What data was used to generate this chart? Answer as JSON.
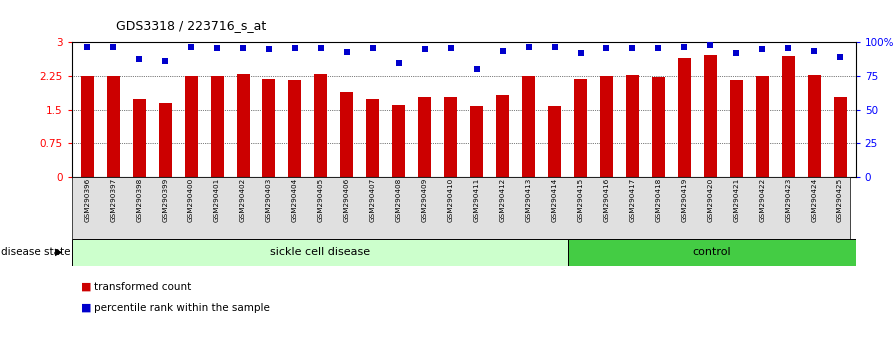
{
  "title": "GDS3318 / 223716_s_at",
  "samples": [
    "GSM290396",
    "GSM290397",
    "GSM290398",
    "GSM290399",
    "GSM290400",
    "GSM290401",
    "GSM290402",
    "GSM290403",
    "GSM290404",
    "GSM290405",
    "GSM290406",
    "GSM290407",
    "GSM290408",
    "GSM290409",
    "GSM290410",
    "GSM290411",
    "GSM290412",
    "GSM290413",
    "GSM290414",
    "GSM290415",
    "GSM290416",
    "GSM290417",
    "GSM290418",
    "GSM290419",
    "GSM290420",
    "GSM290421",
    "GSM290422",
    "GSM290423",
    "GSM290424",
    "GSM290425"
  ],
  "bar_values": [
    2.25,
    2.25,
    1.73,
    1.65,
    2.25,
    2.25,
    2.3,
    2.18,
    2.17,
    2.3,
    1.9,
    1.73,
    1.6,
    1.78,
    1.78,
    1.58,
    1.82,
    2.25,
    1.58,
    2.18,
    2.25,
    2.27,
    2.22,
    2.65,
    2.72,
    2.17,
    2.25,
    2.7,
    2.27,
    1.78
  ],
  "percentile_pct": [
    97,
    97,
    88,
    86,
    97,
    96,
    96,
    95,
    96,
    96,
    93,
    96,
    85,
    95,
    96,
    80,
    94,
    97,
    97,
    92,
    96,
    96,
    96,
    97,
    98,
    92,
    95,
    96,
    94,
    89
  ],
  "sickle_count": 19,
  "bar_color": "#cc0000",
  "dot_color": "#0000cc",
  "sickle_bg": "#ccffcc",
  "control_bg": "#44cc44",
  "yticks_left": [
    0,
    0.75,
    1.5,
    2.25,
    3.0
  ],
  "ytick_labels_left": [
    "0",
    "0.75",
    "1.5",
    "2.25",
    "3"
  ],
  "yticks_right": [
    0,
    25,
    50,
    75,
    100
  ],
  "ytick_labels_right": [
    "0",
    "25",
    "50",
    "75",
    "100%"
  ],
  "title_fontsize": 9,
  "bar_width": 0.5,
  "sickle_label": "sickle cell disease",
  "control_label": "control",
  "disease_state_label": "disease state",
  "legend_bar_label": "transformed count",
  "legend_dot_label": "percentile rank within the sample"
}
